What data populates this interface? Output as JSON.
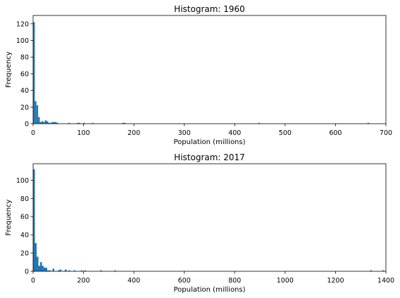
{
  "chart_data": [
    {
      "type": "bar",
      "title": "Histogram: 1960",
      "xlabel": "Population (millions)",
      "ylabel": "Frequency",
      "xlim": [
        0,
        700
      ],
      "ylim": [
        0,
        130
      ],
      "xticks": [
        "0",
        "100",
        "200",
        "300",
        "400",
        "500",
        "600",
        "700"
      ],
      "xtick_values": [
        0,
        100,
        200,
        300,
        400,
        500,
        600,
        700
      ],
      "yticks": [
        "0",
        "20",
        "40",
        "60",
        "80",
        "100",
        "120"
      ],
      "ytick_values": [
        0,
        20,
        40,
        60,
        80,
        100,
        120
      ],
      "bar_color": "#1f77b4",
      "bin_width": 3.33,
      "bins": [
        {
          "x": 0,
          "value": 122
        },
        {
          "x": 3.33,
          "value": 27
        },
        {
          "x": 6.67,
          "value": 22
        },
        {
          "x": 10,
          "value": 8
        },
        {
          "x": 13.33,
          "value": 2
        },
        {
          "x": 16.67,
          "value": 3
        },
        {
          "x": 20,
          "value": 2
        },
        {
          "x": 23.33,
          "value": 4
        },
        {
          "x": 26.67,
          "value": 3
        },
        {
          "x": 30,
          "value": 1
        },
        {
          "x": 33.33,
          "value": 1
        },
        {
          "x": 36.67,
          "value": 2
        },
        {
          "x": 40,
          "value": 2
        },
        {
          "x": 43.33,
          "value": 2
        },
        {
          "x": 46.67,
          "value": 1
        },
        {
          "x": 70,
          "value": 1
        },
        {
          "x": 86.67,
          "value": 1
        },
        {
          "x": 90,
          "value": 1
        },
        {
          "x": 100,
          "value": 1
        },
        {
          "x": 116.67,
          "value": 1
        },
        {
          "x": 176.67,
          "value": 1
        },
        {
          "x": 180,
          "value": 1
        },
        {
          "x": 446.67,
          "value": 1
        },
        {
          "x": 663.33,
          "value": 1
        }
      ]
    },
    {
      "type": "bar",
      "title": "Histogram: 2017",
      "xlabel": "Population (millions)",
      "ylabel": "Frequency",
      "xlim": [
        0,
        1400
      ],
      "ylim": [
        0,
        118
      ],
      "xticks": [
        "0",
        "200",
        "400",
        "600",
        "800",
        "1000",
        "1200",
        "1400"
      ],
      "xtick_values": [
        0,
        200,
        400,
        600,
        800,
        1000,
        1200,
        1400
      ],
      "yticks": [
        "0",
        "20",
        "40",
        "60",
        "80",
        "100"
      ],
      "ytick_values": [
        0,
        20,
        40,
        60,
        80,
        100
      ],
      "bar_color": "#1f77b4",
      "bin_width": 7,
      "bins": [
        {
          "x": 0,
          "value": 112
        },
        {
          "x": 7,
          "value": 31
        },
        {
          "x": 14,
          "value": 16
        },
        {
          "x": 21,
          "value": 6
        },
        {
          "x": 28,
          "value": 10
        },
        {
          "x": 35,
          "value": 6
        },
        {
          "x": 42,
          "value": 4
        },
        {
          "x": 49,
          "value": 4
        },
        {
          "x": 56,
          "value": 1
        },
        {
          "x": 63,
          "value": 1
        },
        {
          "x": 77,
          "value": 3
        },
        {
          "x": 98,
          "value": 1
        },
        {
          "x": 105,
          "value": 2
        },
        {
          "x": 126,
          "value": 2
        },
        {
          "x": 140,
          "value": 1
        },
        {
          "x": 161,
          "value": 1
        },
        {
          "x": 189,
          "value": 1
        },
        {
          "x": 203,
          "value": 1
        },
        {
          "x": 266,
          "value": 1
        },
        {
          "x": 322,
          "value": 1
        },
        {
          "x": 1337,
          "value": 1
        },
        {
          "x": 1386,
          "value": 1
        }
      ]
    }
  ]
}
